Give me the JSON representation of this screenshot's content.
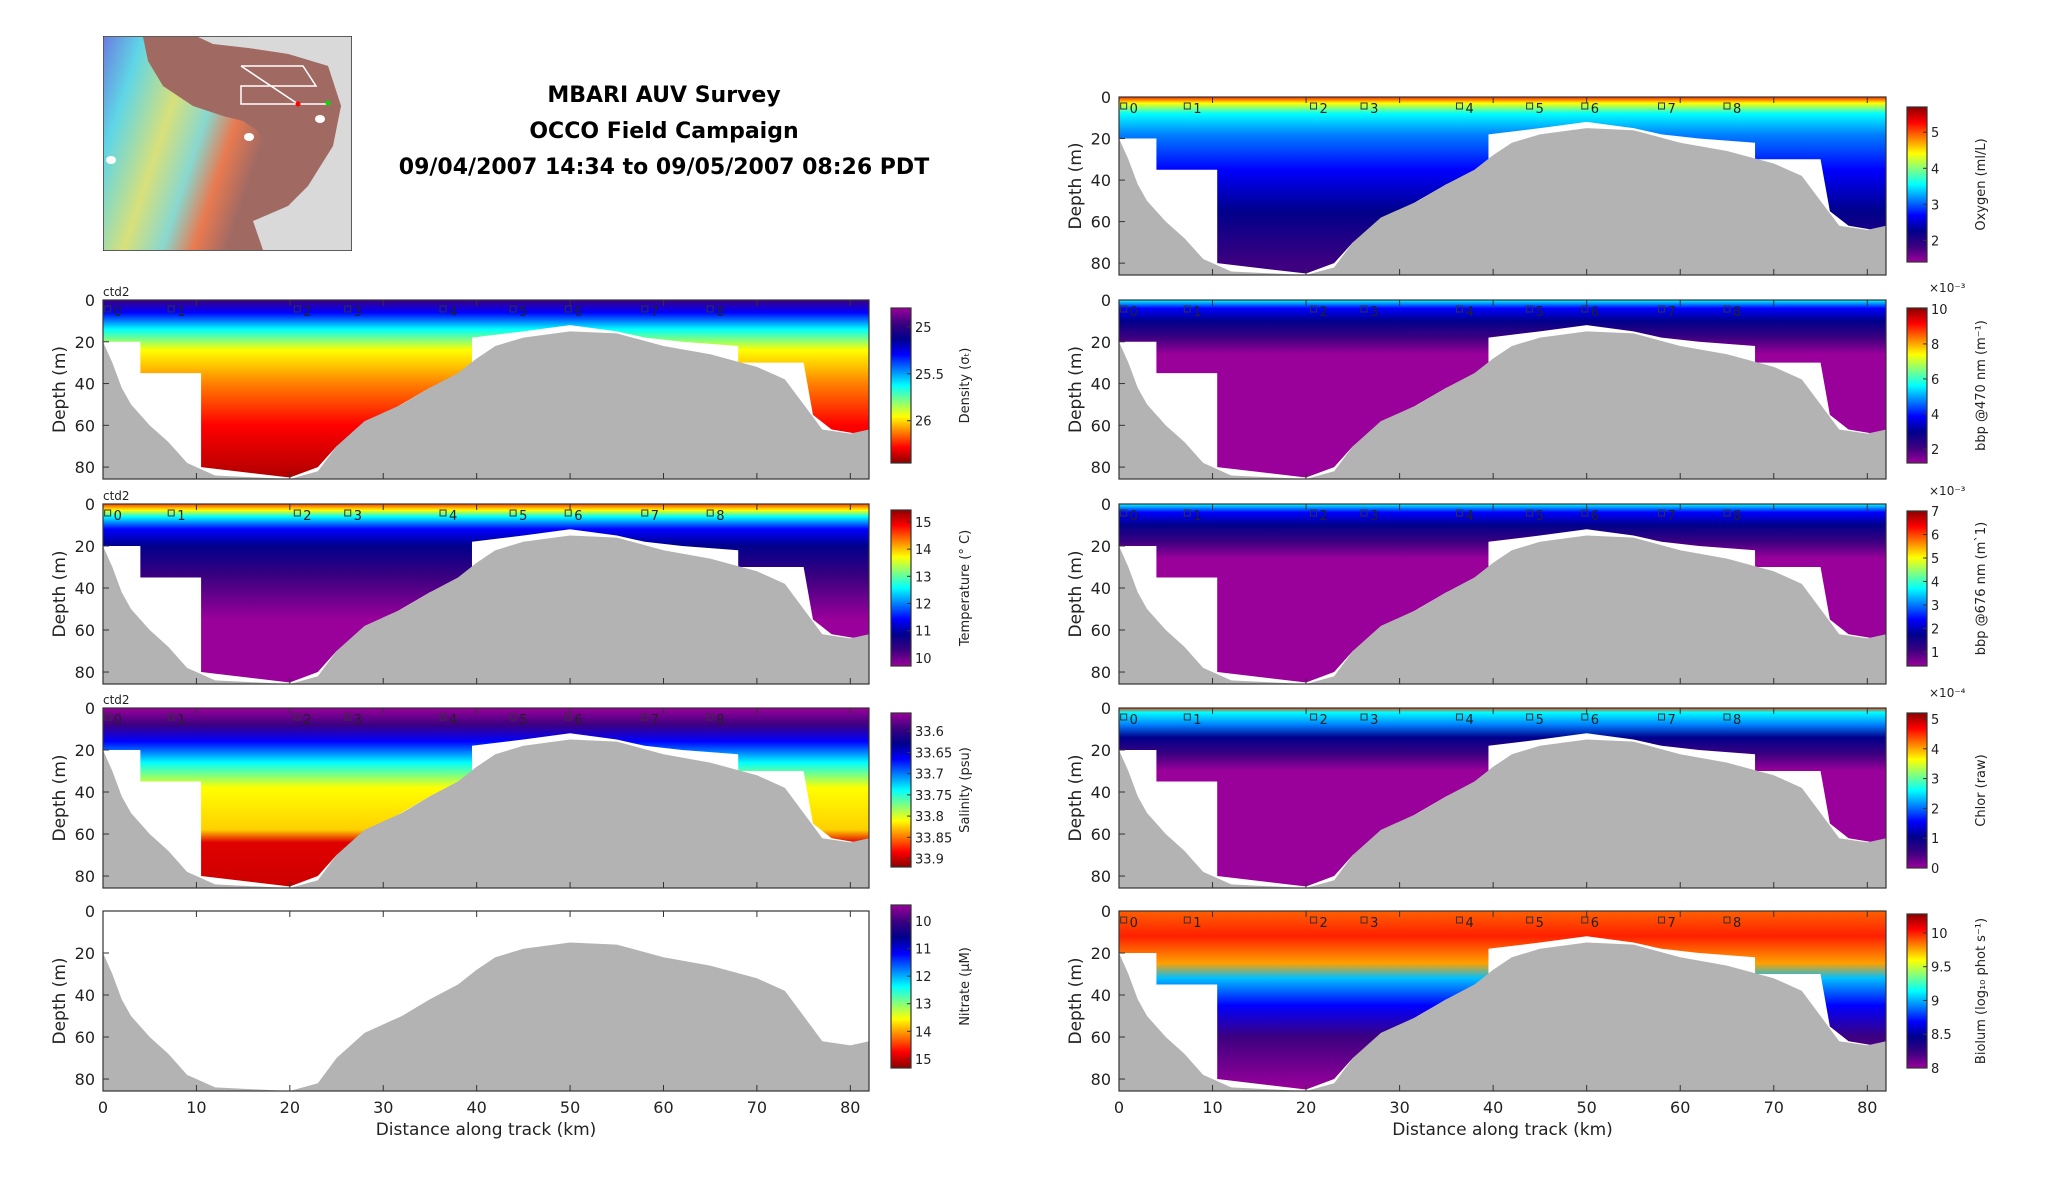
{
  "title": {
    "line1": "MBARI AUV Survey",
    "line2": "OCCO Field Campaign",
    "line3": "09/04/2007 14:34 to 09/05/2007 08:26 PDT"
  },
  "chart_data": {
    "type": "heatmap",
    "xlabel": "Distance along track (km)",
    "ylabel": "Depth (m)",
    "xlim": [
      0,
      82
    ],
    "ylim": [
      0,
      85.7
    ],
    "xticks": [
      0,
      10,
      20,
      30,
      40,
      50,
      60,
      70,
      80
    ],
    "yticks": [
      0,
      20,
      40,
      60,
      80
    ],
    "source_tag": "ctd2",
    "colormap": [
      "#9a009a",
      "#3c0080",
      "#00008b",
      "#0000ff",
      "#0080ff",
      "#00ffff",
      "#80ff80",
      "#ffff00",
      "#ff8000",
      "#ff0000",
      "#8b0000"
    ],
    "seafloor_color": "#b3b3b3",
    "profile_markers": [
      {
        "label": "0",
        "km": 0.5
      },
      {
        "label": "1",
        "km": 7.3
      },
      {
        "label": "2",
        "km": 20.8
      },
      {
        "label": "3",
        "km": 26.2
      },
      {
        "label": "4",
        "km": 36.4
      },
      {
        "label": "5",
        "km": 43.9
      },
      {
        "label": "6",
        "km": 49.8
      },
      {
        "label": "7",
        "km": 58
      },
      {
        "label": "8",
        "km": 65
      }
    ],
    "seafloor_depth": [
      [
        0,
        20
      ],
      [
        1,
        30
      ],
      [
        2,
        42
      ],
      [
        3,
        50
      ],
      [
        5,
        60
      ],
      [
        7,
        68
      ],
      [
        9,
        78
      ],
      [
        10,
        80
      ],
      [
        12,
        84
      ],
      [
        20,
        86
      ],
      [
        23,
        82
      ],
      [
        25,
        70
      ],
      [
        28,
        58
      ],
      [
        32,
        50
      ],
      [
        35,
        42
      ],
      [
        38,
        35
      ],
      [
        40,
        28
      ],
      [
        42,
        22
      ],
      [
        45,
        18
      ],
      [
        50,
        15
      ],
      [
        55,
        16
      ],
      [
        60,
        22
      ],
      [
        65,
        26
      ],
      [
        70,
        32
      ],
      [
        73,
        38
      ],
      [
        75,
        50
      ],
      [
        77,
        62
      ],
      [
        80,
        64
      ],
      [
        82,
        62
      ]
    ],
    "data_max_depth": [
      [
        0,
        20
      ],
      [
        4,
        20
      ],
      [
        4,
        35
      ],
      [
        10.5,
        35
      ],
      [
        10.5,
        80
      ],
      [
        20,
        85
      ],
      [
        23,
        80
      ],
      [
        25,
        70
      ],
      [
        30,
        55
      ],
      [
        35,
        42
      ],
      [
        39.5,
        35
      ],
      [
        39.5,
        18
      ],
      [
        45,
        15
      ],
      [
        50,
        12
      ],
      [
        55,
        15
      ],
      [
        58,
        18
      ],
      [
        62,
        20
      ],
      [
        68,
        22
      ],
      [
        68,
        30
      ],
      [
        75,
        30
      ],
      [
        76,
        55
      ],
      [
        78,
        62
      ],
      [
        82,
        65
      ]
    ],
    "panels": [
      {
        "id": "density",
        "label": "Density (σₜ)",
        "multiplier": null,
        "tag": "ctd2",
        "cbar_range": [
          24.8,
          26.45
        ],
        "cbar_reversed": true,
        "cbar_ticks": [
          25,
          25.5,
          26
        ],
        "profile_colors": [
          [
            0,
            "#3c0080"
          ],
          [
            6,
            "#0000ff"
          ],
          [
            14,
            "#00ffff"
          ],
          [
            24,
            "#ffff00"
          ],
          [
            40,
            "#ff8000"
          ],
          [
            60,
            "#ff0000"
          ],
          [
            85,
            "#b00000"
          ]
        ]
      },
      {
        "id": "temperature",
        "label": "Temperature (° C)",
        "multiplier": null,
        "tag": "ctd2",
        "cbar_range": [
          9.7,
          15.44
        ],
        "cbar_reversed": false,
        "cbar_ticks": [
          15,
          14,
          13,
          12,
          11,
          10
        ],
        "profile_colors": [
          [
            0,
            "#ff4000"
          ],
          [
            3,
            "#ffff00"
          ],
          [
            6,
            "#00ffff"
          ],
          [
            12,
            "#0000ff"
          ],
          [
            20,
            "#00008b"
          ],
          [
            35,
            "#3c0080"
          ],
          [
            55,
            "#9a009a"
          ]
        ]
      },
      {
        "id": "salinity",
        "label": "Salinity (psu)",
        "multiplier": null,
        "tag": "ctd2",
        "cbar_range": [
          33.557,
          33.92
        ],
        "cbar_reversed": true,
        "cbar_ticks": [
          33.6,
          33.65,
          33.7,
          33.75,
          33.8,
          33.85,
          33.9
        ],
        "profile_colors": [
          [
            0,
            "#9a009a"
          ],
          [
            8,
            "#3c0080"
          ],
          [
            16,
            "#0000ff"
          ],
          [
            26,
            "#00ffff"
          ],
          [
            38,
            "#ffff00"
          ],
          [
            58,
            "#ffd000"
          ],
          [
            64,
            "#e00000"
          ],
          [
            85,
            "#cc0000"
          ]
        ]
      },
      {
        "id": "nitrate",
        "label": "Nitrate (μM)",
        "multiplier": null,
        "tag": null,
        "cbar_range": [
          9.42,
          15.33
        ],
        "cbar_reversed": true,
        "cbar_ticks": [
          10,
          11,
          12,
          13,
          14,
          15
        ],
        "profile_colors": []
      },
      {
        "id": "oxygen",
        "label": "Oxygen (ml/L)",
        "multiplier": null,
        "tag": null,
        "cbar_range": [
          1.4,
          5.7
        ],
        "cbar_reversed": false,
        "cbar_ticks": [
          5,
          4,
          3,
          2
        ],
        "profile_colors": [
          [
            0,
            "#ff2000"
          ],
          [
            3,
            "#ffff00"
          ],
          [
            8,
            "#00ffff"
          ],
          [
            18,
            "#0080ff"
          ],
          [
            35,
            "#0000ff"
          ],
          [
            55,
            "#00008b"
          ],
          [
            80,
            "#3c0080"
          ]
        ]
      },
      {
        "id": "bbp470",
        "label": "bbp @470 nm (m⁻¹)",
        "multiplier": "×10⁻³",
        "tag": null,
        "cbar_range": [
          1.2,
          10.05
        ],
        "cbar_reversed": false,
        "cbar_ticks": [
          10,
          8,
          6,
          4,
          2
        ],
        "profile_colors": [
          [
            0,
            "#00ffff"
          ],
          [
            4,
            "#0000ff"
          ],
          [
            10,
            "#00008b"
          ],
          [
            18,
            "#3c0080"
          ],
          [
            26,
            "#9a009a"
          ],
          [
            85,
            "#9a009a"
          ]
        ]
      },
      {
        "id": "bbp676",
        "label": "bbp @676 nm (m`1)",
        "multiplier": "×10⁻³",
        "tag": null,
        "cbar_range": [
          0.4,
          7
        ],
        "cbar_reversed": false,
        "cbar_ticks": [
          7,
          6,
          5,
          4,
          3,
          2,
          1
        ],
        "profile_colors": [
          [
            0,
            "#00ffff"
          ],
          [
            4,
            "#0000ff"
          ],
          [
            10,
            "#00008b"
          ],
          [
            18,
            "#3c0080"
          ],
          [
            26,
            "#9a009a"
          ],
          [
            85,
            "#9a009a"
          ]
        ]
      },
      {
        "id": "chlor",
        "label": "Chlor (raw)",
        "multiplier": "×10⁻⁴",
        "tag": null,
        "cbar_range": [
          0,
          5.2
        ],
        "cbar_reversed": false,
        "cbar_ticks": [
          5,
          4,
          3,
          2,
          1,
          0
        ],
        "profile_colors": [
          [
            0,
            "#ff4000"
          ],
          [
            2,
            "#00ffff"
          ],
          [
            8,
            "#0080ff"
          ],
          [
            14,
            "#00008b"
          ],
          [
            22,
            "#3c0080"
          ],
          [
            30,
            "#9a009a"
          ],
          [
            85,
            "#9a009a"
          ]
        ]
      },
      {
        "id": "biolum",
        "label": "Biolum (log₁₀ phot s⁻¹)",
        "multiplier": null,
        "tag": null,
        "cbar_range": [
          8,
          10.28
        ],
        "cbar_reversed": false,
        "cbar_ticks": [
          10,
          9.5,
          9,
          8.5,
          8
        ],
        "profile_colors": [
          [
            0,
            "#ff6000"
          ],
          [
            12,
            "#ff2000"
          ],
          [
            25,
            "#ffa000"
          ],
          [
            32,
            "#00c0ff"
          ],
          [
            45,
            "#0000ff"
          ],
          [
            60,
            "#3c0080"
          ],
          [
            85,
            "#9a009a"
          ]
        ]
      }
    ]
  }
}
